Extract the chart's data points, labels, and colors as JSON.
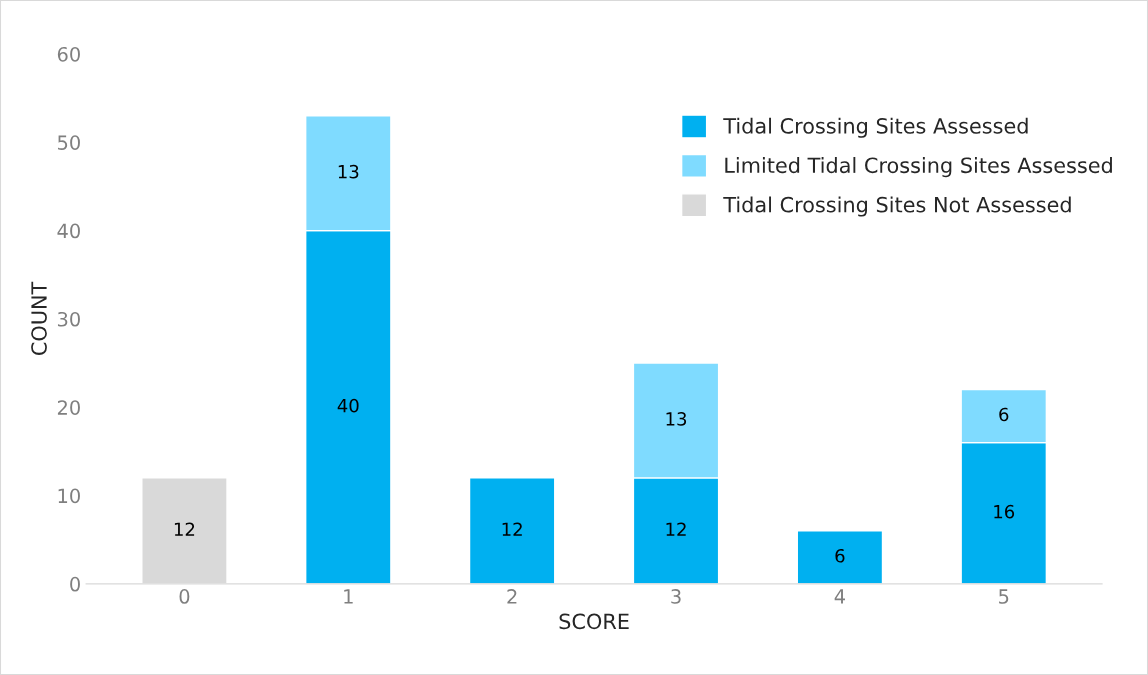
{
  "chart_data": {
    "type": "bar",
    "xlabel": "SCORE",
    "ylabel": "COUNT",
    "categories": [
      "0",
      "1",
      "2",
      "3",
      "4",
      "5"
    ],
    "series": [
      {
        "name": "Tidal Crossing Sites Assessed",
        "color": "#00b0f0",
        "values": [
          null,
          40,
          12,
          12,
          6,
          16
        ]
      },
      {
        "name": "Limited Tidal Crossing Sites Assessed",
        "color": "#7fdbff",
        "values": [
          null,
          13,
          null,
          13,
          null,
          6
        ]
      },
      {
        "name": "Tidal Crossing Sites Not Assessed",
        "color": "#d9d9d9",
        "values": [
          12,
          null,
          null,
          null,
          null,
          null
        ]
      }
    ],
    "stacked": true,
    "ylim": [
      0,
      60
    ],
    "yticks": [
      0,
      10,
      20,
      30,
      40,
      50,
      60
    ],
    "data_labels": true,
    "grid": false,
    "legend": "top right"
  }
}
